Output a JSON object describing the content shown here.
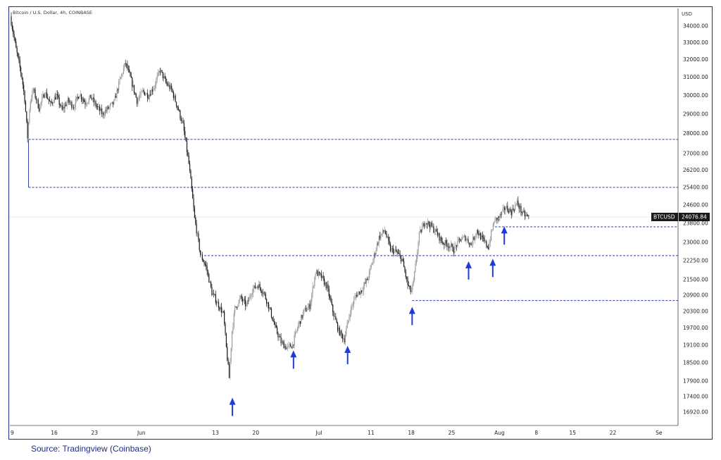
{
  "header": {
    "title": "Bitcoin / U.S. Dollar, 4h, COINBASE",
    "currency": "USD"
  },
  "source": "Source: Tradingview (Coinbase)",
  "colors": {
    "frame": "#1f2d8c",
    "candle": "#1a1a1a",
    "candle_light": "#9a9a9a",
    "level_line": "#2a3fa8",
    "arrow": "#1f3bd6",
    "price_label_bg": "#1a1a1a",
    "price_label_text": "#ffffff"
  },
  "chart_data": {
    "type": "candlestick",
    "instrument": "BTCUSD",
    "timeframe": "4h",
    "y_scale": "log",
    "ylim": [
      16500,
      35000
    ],
    "y_ticks": [
      34000,
      33000,
      32000,
      31000,
      30000,
      29000,
      28000,
      27000,
      26200,
      25400,
      24600,
      23800,
      23000,
      22250,
      21500,
      20900,
      20300,
      19700,
      19100,
      18500,
      17900,
      17400,
      16920
    ],
    "y_tick_labels": [
      "34000.00",
      "33000.00",
      "32000.00",
      "31000.00",
      "30000.00",
      "29000.00",
      "28000.00",
      "27000.00",
      "26200.00",
      "25400.00",
      "24600.00",
      "23800.00",
      "23000.00",
      "22250.00",
      "21500.00",
      "20900.00",
      "20300.00",
      "19700.00",
      "19100.00",
      "18500.00",
      "17900.00",
      "17400.00",
      "16920.00"
    ],
    "x_tick_labels": [
      "9",
      "16",
      "23",
      "Jun",
      "13",
      "20",
      "Jul",
      "11",
      "18",
      "25",
      "Aug",
      "8",
      "15",
      "22",
      "Se"
    ],
    "last_price": 24076.84,
    "last_price_label": "24076.84",
    "path": [
      {
        "d": 0,
        "p": 34600
      },
      {
        "d": 1,
        "p": 32600
      },
      {
        "d": 2,
        "p": 31000
      },
      {
        "d": 2.5,
        "p": 29800
      },
      {
        "d": 3,
        "p": 27800
      },
      {
        "d": 3.4,
        "p": 29600
      },
      {
        "d": 4,
        "p": 30300
      },
      {
        "d": 5,
        "p": 29300
      },
      {
        "d": 6,
        "p": 30200
      },
      {
        "d": 7,
        "p": 29500
      },
      {
        "d": 8,
        "p": 30000
      },
      {
        "d": 9,
        "p": 29200
      },
      {
        "d": 10,
        "p": 29700
      },
      {
        "d": 11,
        "p": 29400
      },
      {
        "d": 12,
        "p": 30100
      },
      {
        "d": 13,
        "p": 29600
      },
      {
        "d": 14,
        "p": 29900
      },
      {
        "d": 15,
        "p": 29400
      },
      {
        "d": 16,
        "p": 29000
      },
      {
        "d": 17,
        "p": 29300
      },
      {
        "d": 18,
        "p": 29600
      },
      {
        "d": 19,
        "p": 30800
      },
      {
        "d": 20,
        "p": 31800
      },
      {
        "d": 21,
        "p": 30800
      },
      {
        "d": 22,
        "p": 29700
      },
      {
        "d": 23,
        "p": 30200
      },
      {
        "d": 24,
        "p": 30000
      },
      {
        "d": 25,
        "p": 30500
      },
      {
        "d": 26,
        "p": 31400
      },
      {
        "d": 27,
        "p": 30700
      },
      {
        "d": 28,
        "p": 30300
      },
      {
        "d": 29,
        "p": 29400
      },
      {
        "d": 30,
        "p": 28400
      },
      {
        "d": 31,
        "p": 26500
      },
      {
        "d": 32,
        "p": 24000
      },
      {
        "d": 33,
        "p": 22500
      },
      {
        "d": 34,
        "p": 22000
      },
      {
        "d": 35,
        "p": 21000
      },
      {
        "d": 36,
        "p": 20600
      },
      {
        "d": 37,
        "p": 20200
      },
      {
        "d": 37.5,
        "p": 19000
      },
      {
        "d": 38,
        "p": 18000
      },
      {
        "d": 38.5,
        "p": 19600
      },
      {
        "d": 39,
        "p": 20400
      },
      {
        "d": 40,
        "p": 20800
      },
      {
        "d": 41,
        "p": 20500
      },
      {
        "d": 42,
        "p": 21100
      },
      {
        "d": 43,
        "p": 21300
      },
      {
        "d": 44,
        "p": 21000
      },
      {
        "d": 45,
        "p": 20400
      },
      {
        "d": 46,
        "p": 19700
      },
      {
        "d": 47,
        "p": 19200
      },
      {
        "d": 48,
        "p": 19000
      },
      {
        "d": 49,
        "p": 19100
      },
      {
        "d": 50,
        "p": 19800
      },
      {
        "d": 51,
        "p": 20300
      },
      {
        "d": 52,
        "p": 20500
      },
      {
        "d": 53,
        "p": 21800
      },
      {
        "d": 54,
        "p": 21600
      },
      {
        "d": 55,
        "p": 21200
      },
      {
        "d": 56,
        "p": 20300
      },
      {
        "d": 57,
        "p": 19600
      },
      {
        "d": 58,
        "p": 19300
      },
      {
        "d": 59,
        "p": 20300
      },
      {
        "d": 60,
        "p": 20900
      },
      {
        "d": 61,
        "p": 21100
      },
      {
        "d": 62,
        "p": 21500
      },
      {
        "d": 63,
        "p": 22300
      },
      {
        "d": 64,
        "p": 23200
      },
      {
        "d": 65,
        "p": 23500
      },
      {
        "d": 66,
        "p": 22700
      },
      {
        "d": 67,
        "p": 22600
      },
      {
        "d": 68,
        "p": 22300
      },
      {
        "d": 69,
        "p": 21300
      },
      {
        "d": 69.6,
        "p": 21000
      },
      {
        "d": 70,
        "p": 21400
      },
      {
        "d": 71,
        "p": 23300
      },
      {
        "d": 72,
        "p": 23900
      },
      {
        "d": 73,
        "p": 23700
      },
      {
        "d": 74,
        "p": 23400
      },
      {
        "d": 75,
        "p": 23000
      },
      {
        "d": 76,
        "p": 22900
      },
      {
        "d": 77,
        "p": 22700
      },
      {
        "d": 78,
        "p": 23100
      },
      {
        "d": 79,
        "p": 23200
      },
      {
        "d": 80,
        "p": 22900
      },
      {
        "d": 81,
        "p": 23500
      },
      {
        "d": 82,
        "p": 23100
      },
      {
        "d": 83,
        "p": 22800
      },
      {
        "d": 84,
        "p": 23900
      },
      {
        "d": 85,
        "p": 24100
      },
      {
        "d": 86,
        "p": 24500
      },
      {
        "d": 87,
        "p": 24300
      },
      {
        "d": 88,
        "p": 24700
      },
      {
        "d": 89,
        "p": 24200
      },
      {
        "d": 90,
        "p": 24077
      }
    ],
    "horizontal_levels": [
      {
        "price": 27700,
        "from_day": 3
      },
      {
        "price": 25400,
        "from_day": 3
      },
      {
        "price": 22450,
        "from_day": 33.5
      },
      {
        "price": 23650,
        "from_day": 84
      },
      {
        "price": 20700,
        "from_day": 69.6
      }
    ],
    "arrows": [
      {
        "day": 38.4,
        "price": 16800
      },
      {
        "day": 49,
        "price": 18300
      },
      {
        "day": 58.4,
        "price": 18450
      },
      {
        "day": 69.6,
        "price": 19800
      },
      {
        "day": 79.4,
        "price": 21500
      },
      {
        "day": 83.6,
        "price": 21600
      },
      {
        "day": 85.6,
        "price": 22900
      }
    ]
  }
}
